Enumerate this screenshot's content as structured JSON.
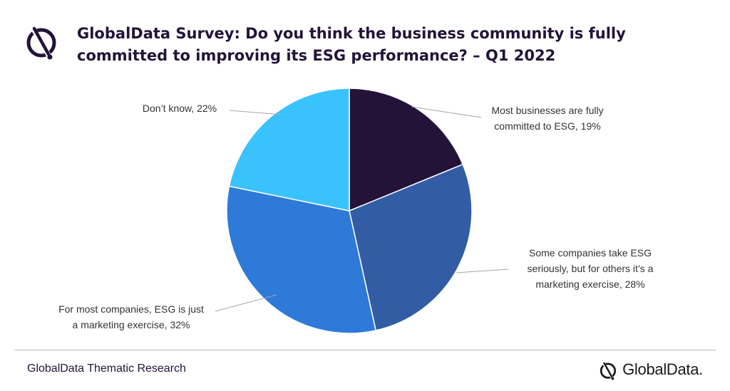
{
  "title": "GlobalData Survey: Do you think the business community is fully committed to improving its ESG performance? – Q1 2022",
  "footer": {
    "source": "GlobalData Thematic Research",
    "brand": "GlobalData."
  },
  "chart_data": {
    "type": "pie",
    "title": "GlobalData Survey: Do you think the business community is fully committed to improving its ESG performance? – Q1 2022",
    "legend": "none",
    "slices": [
      {
        "category": "Most businesses are fully committed to ESG",
        "value": 19,
        "label_lines": [
          "Most businesses are fully",
          "committed to ESG, 19%"
        ],
        "color": "#231339"
      },
      {
        "category": "Some companies take ESG seriously, but for others it’s a marketing exercise",
        "value": 28,
        "label_lines": [
          "Some companies take ESG",
          "seriously, but for others it’s a",
          "marketing exercise, 28%"
        ],
        "color": "#325da5"
      },
      {
        "category": "For most companies, ESG is just a marketing exercise",
        "value": 32,
        "label_lines": [
          "For most companies, ESG is just",
          "a marketing exercise, 32%"
        ],
        "color": "#2e7ad8"
      },
      {
        "category": "Don’t know",
        "value": 22,
        "label_lines": [
          "Don’t know, 22%"
        ],
        "color": "#3ac2fd"
      }
    ]
  },
  "colors": {
    "brand_dark": "#231339",
    "divider": "#bfbfbf"
  }
}
